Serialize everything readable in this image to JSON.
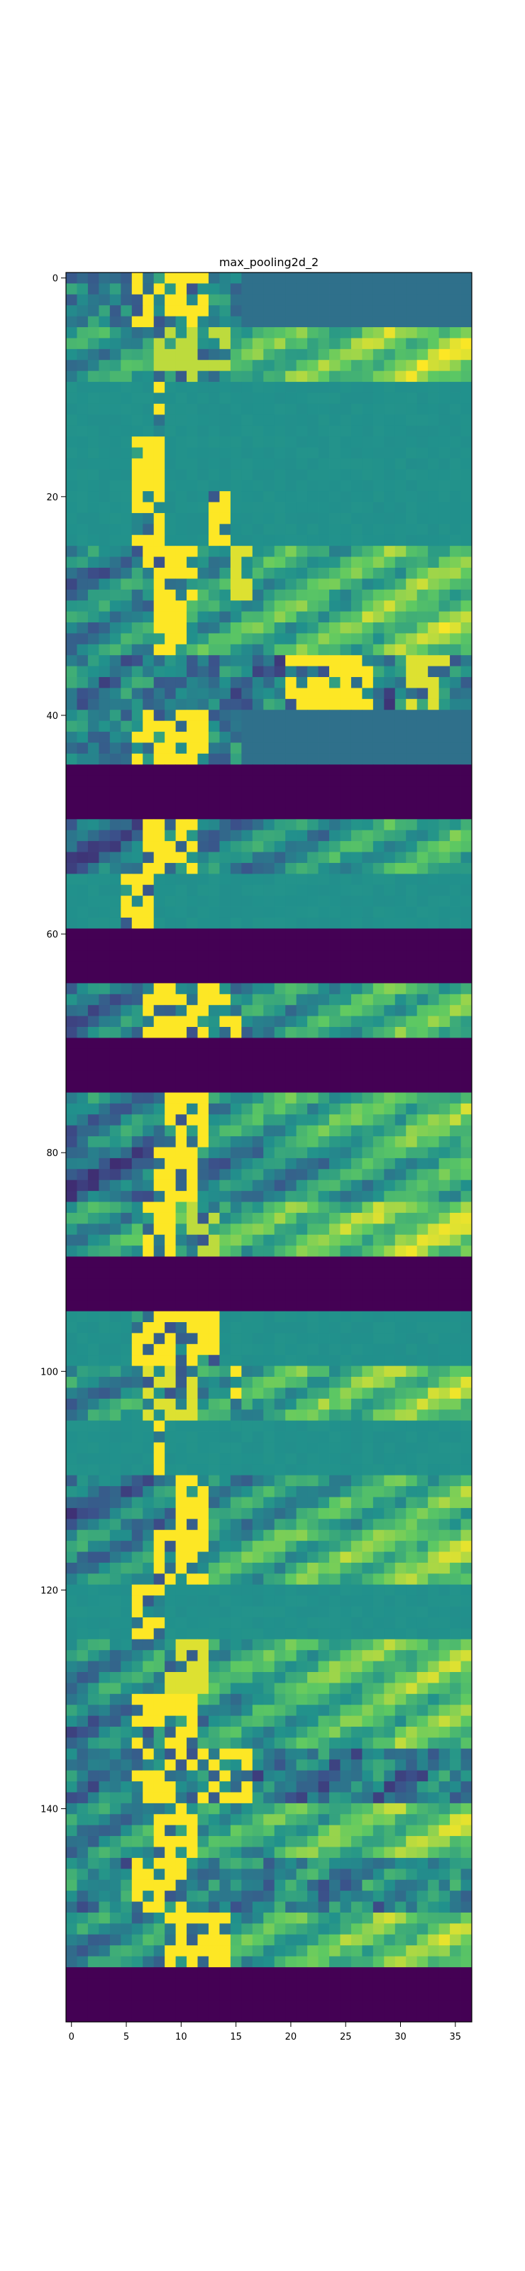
{
  "chart_data": {
    "type": "heatmap",
    "title": "max_pooling2d_2",
    "xlabel": "",
    "ylabel": "",
    "n_cols": 37,
    "n_rows": 160,
    "xlim": [
      -0.5,
      36.5
    ],
    "ylim": [
      159.5,
      -0.5
    ],
    "x_ticks": [
      0,
      5,
      10,
      15,
      20,
      25,
      30,
      35
    ],
    "y_ticks": [
      0,
      20,
      40,
      60,
      80,
      100,
      120,
      140
    ],
    "x_tick_labels": [
      "0",
      "5",
      "10",
      "15",
      "20",
      "25",
      "30",
      "35"
    ],
    "y_tick_labels": [
      "0",
      "20",
      "40",
      "60",
      "80",
      "100",
      "120",
      "140"
    ],
    "colormap": "viridis",
    "colormap_stops": [
      "#440154",
      "#3b528b",
      "#21918c",
      "#5ec962",
      "#fde725"
    ],
    "value_range": [
      0,
      1
    ],
    "grid": false,
    "bands": [
      {
        "rows": [
          0,
          4
        ],
        "base": 0.45,
        "bright": [
          [
            6,
            12,
            1.0
          ]
        ],
        "pattern": "sparse-left"
      },
      {
        "rows": [
          5,
          9
        ],
        "base": 0.65,
        "bright": [
          [
            8,
            14,
            0.9
          ]
        ],
        "pattern": "wavy-right"
      },
      {
        "rows": [
          10,
          14
        ],
        "base": 0.5,
        "bright": [
          [
            8,
            8,
            1.0
          ]
        ],
        "pattern": "flat"
      },
      {
        "rows": [
          15,
          19
        ],
        "base": 0.5,
        "bright": [
          [
            6,
            8,
            1.0
          ]
        ],
        "pattern": "flat"
      },
      {
        "rows": [
          20,
          24
        ],
        "base": 0.5,
        "bright": [
          [
            6,
            8,
            1.0
          ],
          [
            13,
            14,
            1.0
          ]
        ],
        "pattern": "flat"
      },
      {
        "rows": [
          25,
          29
        ],
        "base": 0.55,
        "bright": [
          [
            7,
            11,
            1.0
          ],
          [
            15,
            16,
            0.95
          ]
        ],
        "pattern": "wavy-right"
      },
      {
        "rows": [
          30,
          34
        ],
        "base": 0.6,
        "bright": [
          [
            8,
            10,
            1.0
          ]
        ],
        "pattern": "wavy-right"
      },
      {
        "rows": [
          35,
          39
        ],
        "base": 0.4,
        "bright": [
          [
            20,
            27,
            1.0
          ],
          [
            30,
            34,
            0.95
          ]
        ],
        "pattern": "sparse-right"
      },
      {
        "rows": [
          40,
          44
        ],
        "base": 0.45,
        "bright": [
          [
            6,
            12,
            1.0
          ]
        ],
        "pattern": "sparse-left"
      },
      {
        "rows": [
          45,
          49
        ],
        "base": 0.0,
        "bright": [],
        "pattern": "flat"
      },
      {
        "rows": [
          50,
          54
        ],
        "base": 0.45,
        "bright": [
          [
            7,
            11,
            1.0
          ]
        ],
        "pattern": "wavy-right"
      },
      {
        "rows": [
          55,
          59
        ],
        "base": 0.5,
        "bright": [
          [
            5,
            7,
            1.0
          ]
        ],
        "pattern": "flat"
      },
      {
        "rows": [
          60,
          64
        ],
        "base": 0.0,
        "bright": [],
        "pattern": "flat"
      },
      {
        "rows": [
          65,
          69
        ],
        "base": 0.5,
        "bright": [
          [
            7,
            15,
            1.0
          ]
        ],
        "pattern": "wavy-right"
      },
      {
        "rows": [
          70,
          74
        ],
        "base": 0.0,
        "bright": [],
        "pattern": "flat"
      },
      {
        "rows": [
          75,
          79
        ],
        "base": 0.55,
        "bright": [
          [
            9,
            12,
            1.0
          ]
        ],
        "pattern": "wavy-right"
      },
      {
        "rows": [
          80,
          84
        ],
        "base": 0.45,
        "bright": [
          [
            8,
            11,
            1.0
          ]
        ],
        "pattern": "wavy-right"
      },
      {
        "rows": [
          85,
          89
        ],
        "base": 0.65,
        "bright": [
          [
            7,
            9,
            1.0
          ],
          [
            11,
            13,
            0.9
          ]
        ],
        "pattern": "wavy-right"
      },
      {
        "rows": [
          90,
          94
        ],
        "base": 0.0,
        "bright": [],
        "pattern": "flat"
      },
      {
        "rows": [
          95,
          99
        ],
        "base": 0.5,
        "bright": [
          [
            6,
            13,
            1.0
          ]
        ],
        "pattern": "flat"
      },
      {
        "rows": [
          100,
          104
        ],
        "base": 0.6,
        "bright": [
          [
            7,
            11,
            0.95
          ],
          [
            15,
            15,
            1.0
          ]
        ],
        "pattern": "wavy-right"
      },
      {
        "rows": [
          105,
          109
        ],
        "base": 0.5,
        "bright": [
          [
            8,
            8,
            1.0
          ]
        ],
        "pattern": "flat"
      },
      {
        "rows": [
          110,
          114
        ],
        "base": 0.5,
        "bright": [
          [
            10,
            12,
            1.0
          ]
        ],
        "pattern": "wavy-right"
      },
      {
        "rows": [
          115,
          119
        ],
        "base": 0.6,
        "bright": [
          [
            8,
            12,
            1.0
          ]
        ],
        "pattern": "wavy-right"
      },
      {
        "rows": [
          120,
          124
        ],
        "base": 0.5,
        "bright": [
          [
            6,
            8,
            1.0
          ]
        ],
        "pattern": "flat"
      },
      {
        "rows": [
          125,
          129
        ],
        "base": 0.6,
        "bright": [
          [
            9,
            12,
            0.95
          ]
        ],
        "pattern": "wavy-right"
      },
      {
        "rows": [
          130,
          134
        ],
        "base": 0.55,
        "bright": [
          [
            6,
            11,
            1.0
          ]
        ],
        "pattern": "wavy-right"
      },
      {
        "rows": [
          135,
          139
        ],
        "base": 0.4,
        "bright": [
          [
            6,
            16,
            1.0
          ]
        ],
        "pattern": "sparse-right"
      },
      {
        "rows": [
          140,
          144
        ],
        "base": 0.6,
        "bright": [
          [
            8,
            11,
            1.0
          ]
        ],
        "pattern": "wavy-right"
      },
      {
        "rows": [
          145,
          149
        ],
        "base": 0.45,
        "bright": [
          [
            6,
            10,
            1.0
          ]
        ],
        "pattern": "sparse-right"
      },
      {
        "rows": [
          150,
          154
        ],
        "base": 0.6,
        "bright": [
          [
            9,
            14,
            1.0
          ]
        ],
        "pattern": "wavy-right"
      },
      {
        "rows": [
          155,
          159
        ],
        "base": 0.0,
        "bright": [],
        "pattern": "flat"
      }
    ]
  }
}
